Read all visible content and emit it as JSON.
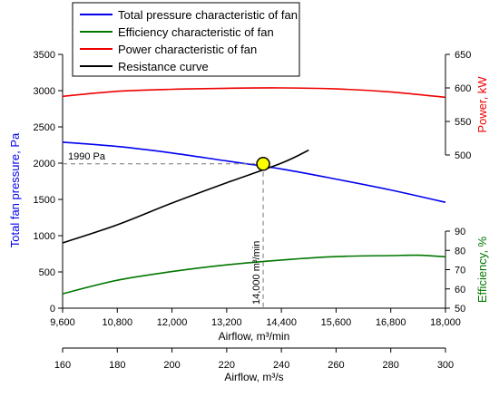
{
  "chart_data": {
    "type": "line",
    "xlabel": "Airflow, m³/min",
    "xlabel_secondary": "Airflow, m³/s",
    "xlim": [
      9600,
      18000
    ],
    "x_ticks": [
      9600,
      10800,
      12000,
      13200,
      14400,
      15600,
      16800,
      18000
    ],
    "x_tick_labels": [
      "9,600",
      "10,800",
      "12,000",
      "13,200",
      "14,400",
      "15,600",
      "16,800",
      "18,000"
    ],
    "x2_ticks": [
      160,
      180,
      200,
      220,
      240,
      260,
      280,
      300
    ],
    "x2_tick_labels": [
      "160",
      "180",
      "200",
      "220",
      "240",
      "260",
      "280",
      "300"
    ],
    "ylabel_left": "Total fan pressure, Pa",
    "ylim_left": [
      0,
      3500
    ],
    "y_left_ticks": [
      0,
      500,
      1000,
      1500,
      2000,
      2500,
      3000,
      3500
    ],
    "ylabel_power": "Power, kW",
    "ylim_power": [
      500,
      650
    ],
    "y_power_ticks": [
      500,
      550,
      600,
      650
    ],
    "ylabel_efficiency": "Efficiency, %",
    "ylim_efficiency": [
      50,
      90
    ],
    "y_efficiency_ticks": [
      50,
      60,
      70,
      80,
      90
    ],
    "legend_position": "top",
    "grid": false,
    "series": [
      {
        "name": "Total pressure characteristic of fan",
        "color": "#0000ee",
        "axis": "left",
        "x": [
          9600,
          10800,
          12000,
          13200,
          14400,
          15600,
          16800,
          18000
        ],
        "values": [
          2290,
          2230,
          2140,
          2030,
          1920,
          1780,
          1630,
          1460
        ]
      },
      {
        "name": "Efficiency characteristic of fan",
        "color": "#007700",
        "axis": "efficiency",
        "x": [
          9600,
          10800,
          12000,
          13200,
          14400,
          15600,
          16800,
          17400,
          18000
        ],
        "values": [
          57.5,
          64.5,
          69.0,
          72.5,
          75.0,
          76.8,
          77.3,
          77.5,
          76.7
        ]
      },
      {
        "name": "Power characteristic of fan",
        "color": "#ee0000",
        "axis": "power",
        "x": [
          9600,
          10800,
          12000,
          13200,
          14400,
          15600,
          16800,
          18000
        ],
        "values": [
          587.5,
          595.0,
          598.0,
          599.5,
          600.0,
          598.5,
          594.0,
          586.0
        ]
      },
      {
        "name": "Resistance curve",
        "color": "#000000",
        "axis": "left",
        "x": [
          9600,
          10800,
          12000,
          13200,
          14400,
          15000
        ],
        "values": [
          900,
          1150,
          1450,
          1730,
          2000,
          2180
        ]
      }
    ],
    "operating_point": {
      "x": 14000,
      "y": 1990,
      "pressure_label": "1990 Pa",
      "airflow_label": "14,000 m³/min",
      "color": "#ffff00"
    }
  }
}
